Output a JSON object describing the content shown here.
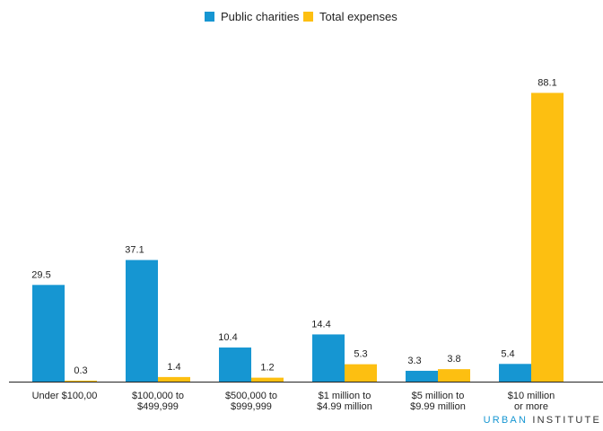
{
  "chart_data": {
    "type": "bar",
    "categories": [
      [
        "Under $100,00"
      ],
      [
        "$100,000 to",
        "$499,999"
      ],
      [
        "$500,000 to",
        "$999,999"
      ],
      [
        "$1 million to",
        "$4.99 million"
      ],
      [
        "$5 million to",
        "$9.99 million"
      ],
      [
        "$10 million",
        "or more"
      ]
    ],
    "series": [
      {
        "name": "Public charities",
        "color": "#1696d2",
        "values": [
          29.5,
          37.1,
          10.4,
          14.4,
          3.3,
          5.4
        ]
      },
      {
        "name": "Total expenses",
        "color": "#fdbf11",
        "values": [
          0.3,
          1.4,
          1.2,
          5.3,
          3.8,
          88.1
        ]
      }
    ],
    "value_labels": [
      [
        "29.5",
        "37.1",
        "10.4",
        "14.4",
        "3.3",
        "5.4"
      ],
      [
        "0.3",
        "1.4",
        "1.2",
        "5.3",
        "3.8",
        "88.1"
      ]
    ],
    "ylim": [
      0,
      90
    ],
    "grid": false,
    "legend_position": "top-center"
  },
  "branding": {
    "name_part1": "URBAN",
    "name_part2": "INSTITUTE"
  }
}
